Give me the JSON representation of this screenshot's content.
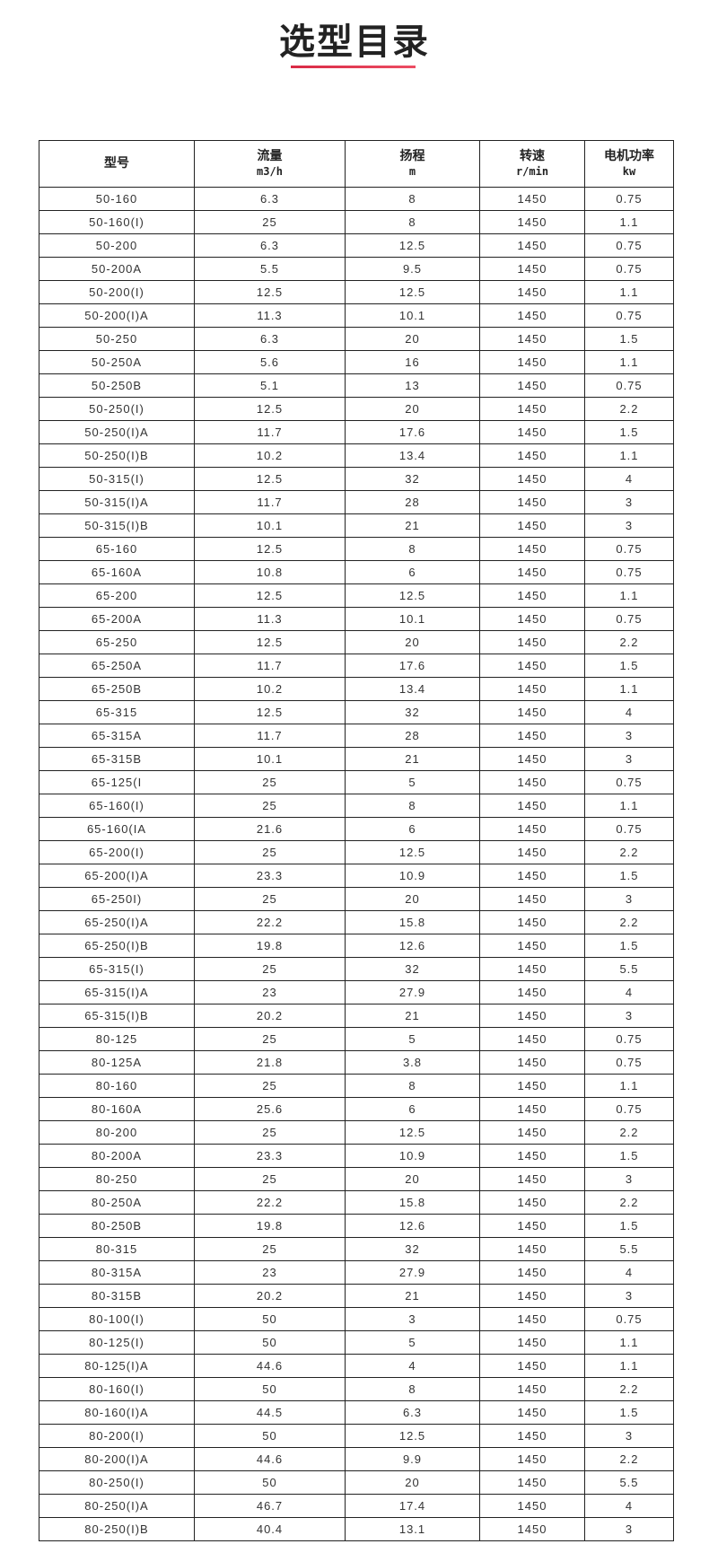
{
  "title": "选型目录",
  "accent_color": "#e0334b",
  "table": {
    "headers": [
      {
        "label": "型号",
        "unit": ""
      },
      {
        "label": "流量",
        "unit": "m3/h"
      },
      {
        "label": "扬程",
        "unit": "m"
      },
      {
        "label": "转速",
        "unit": "r/min"
      },
      {
        "label": "电机功率",
        "unit": "kw"
      }
    ],
    "rows": [
      [
        "50-160",
        "6.3",
        "8",
        "1450",
        "0.75"
      ],
      [
        "50-160(I)",
        "25",
        "8",
        "1450",
        "1.1"
      ],
      [
        "50-200",
        "6.3",
        "12.5",
        "1450",
        "0.75"
      ],
      [
        "50-200A",
        "5.5",
        "9.5",
        "1450",
        "0.75"
      ],
      [
        "50-200(I)",
        "12.5",
        "12.5",
        "1450",
        "1.1"
      ],
      [
        "50-200(I)A",
        "11.3",
        "10.1",
        "1450",
        "0.75"
      ],
      [
        "50-250",
        "6.3",
        "20",
        "1450",
        "1.5"
      ],
      [
        "50-250A",
        "5.6",
        "16",
        "1450",
        "1.1"
      ],
      [
        "50-250B",
        "5.1",
        "13",
        "1450",
        "0.75"
      ],
      [
        "50-250(I)",
        "12.5",
        "20",
        "1450",
        "2.2"
      ],
      [
        "50-250(I)A",
        "11.7",
        "17.6",
        "1450",
        "1.5"
      ],
      [
        "50-250(I)B",
        "10.2",
        "13.4",
        "1450",
        "1.1"
      ],
      [
        "50-315(I)",
        "12.5",
        "32",
        "1450",
        "4"
      ],
      [
        "50-315(I)A",
        "11.7",
        "28",
        "1450",
        "3"
      ],
      [
        "50-315(I)B",
        "10.1",
        "21",
        "1450",
        "3"
      ],
      [
        "65-160",
        "12.5",
        "8",
        "1450",
        "0.75"
      ],
      [
        "65-160A",
        "10.8",
        "6",
        "1450",
        "0.75"
      ],
      [
        "65-200",
        "12.5",
        "12.5",
        "1450",
        "1.1"
      ],
      [
        "65-200A",
        "11.3",
        "10.1",
        "1450",
        "0.75"
      ],
      [
        "65-250",
        "12.5",
        "20",
        "1450",
        "2.2"
      ],
      [
        "65-250A",
        "11.7",
        "17.6",
        "1450",
        "1.5"
      ],
      [
        "65-250B",
        "10.2",
        "13.4",
        "1450",
        "1.1"
      ],
      [
        "65-315",
        "12.5",
        "32",
        "1450",
        "4"
      ],
      [
        "65-315A",
        "11.7",
        "28",
        "1450",
        "3"
      ],
      [
        "65-315B",
        "10.1",
        "21",
        "1450",
        "3"
      ],
      [
        "65-125(I",
        "25",
        "5",
        "1450",
        "0.75"
      ],
      [
        "65-160(I)",
        "25",
        "8",
        "1450",
        "1.1"
      ],
      [
        "65-160(IA",
        "21.6",
        "6",
        "1450",
        "0.75"
      ],
      [
        "65-200(I)",
        "25",
        "12.5",
        "1450",
        "2.2"
      ],
      [
        "65-200(I)A",
        "23.3",
        "10.9",
        "1450",
        "1.5"
      ],
      [
        "65-250I)",
        "25",
        "20",
        "1450",
        "3"
      ],
      [
        "65-250(I)A",
        "22.2",
        "15.8",
        "1450",
        "2.2"
      ],
      [
        "65-250(I)B",
        "19.8",
        "12.6",
        "1450",
        "1.5"
      ],
      [
        "65-315(I)",
        "25",
        "32",
        "1450",
        "5.5"
      ],
      [
        "65-315(I)A",
        "23",
        "27.9",
        "1450",
        "4"
      ],
      [
        "65-315(I)B",
        "20.2",
        "21",
        "1450",
        "3"
      ],
      [
        "80-125",
        "25",
        "5",
        "1450",
        "0.75"
      ],
      [
        "80-125A",
        "21.8",
        "3.8",
        "1450",
        "0.75"
      ],
      [
        "80-160",
        "25",
        "8",
        "1450",
        "1.1"
      ],
      [
        "80-160A",
        "25.6",
        "6",
        "1450",
        "0.75"
      ],
      [
        "80-200",
        "25",
        "12.5",
        "1450",
        "2.2"
      ],
      [
        "80-200A",
        "23.3",
        "10.9",
        "1450",
        "1.5"
      ],
      [
        "80-250",
        "25",
        "20",
        "1450",
        "3"
      ],
      [
        "80-250A",
        "22.2",
        "15.8",
        "1450",
        "2.2"
      ],
      [
        "80-250B",
        "19.8",
        "12.6",
        "1450",
        "1.5"
      ],
      [
        "80-315",
        "25",
        "32",
        "1450",
        "5.5"
      ],
      [
        "80-315A",
        "23",
        "27.9",
        "1450",
        "4"
      ],
      [
        "80-315B",
        "20.2",
        "21",
        "1450",
        "3"
      ],
      [
        "80-100(I)",
        "50",
        "3",
        "1450",
        "0.75"
      ],
      [
        "80-125(I)",
        "50",
        "5",
        "1450",
        "1.1"
      ],
      [
        "80-125(I)A",
        "44.6",
        "4",
        "1450",
        "1.1"
      ],
      [
        "80-160(I)",
        "50",
        "8",
        "1450",
        "2.2"
      ],
      [
        "80-160(I)A",
        "44.5",
        "6.3",
        "1450",
        "1.5"
      ],
      [
        "80-200(I)",
        "50",
        "12.5",
        "1450",
        "3"
      ],
      [
        "80-200(I)A",
        "44.6",
        "9.9",
        "1450",
        "2.2"
      ],
      [
        "80-250(I)",
        "50",
        "20",
        "1450",
        "5.5"
      ],
      [
        "80-250(I)A",
        "46.7",
        "17.4",
        "1450",
        "4"
      ],
      [
        "80-250(I)B",
        "40.4",
        "13.1",
        "1450",
        "3"
      ]
    ]
  }
}
